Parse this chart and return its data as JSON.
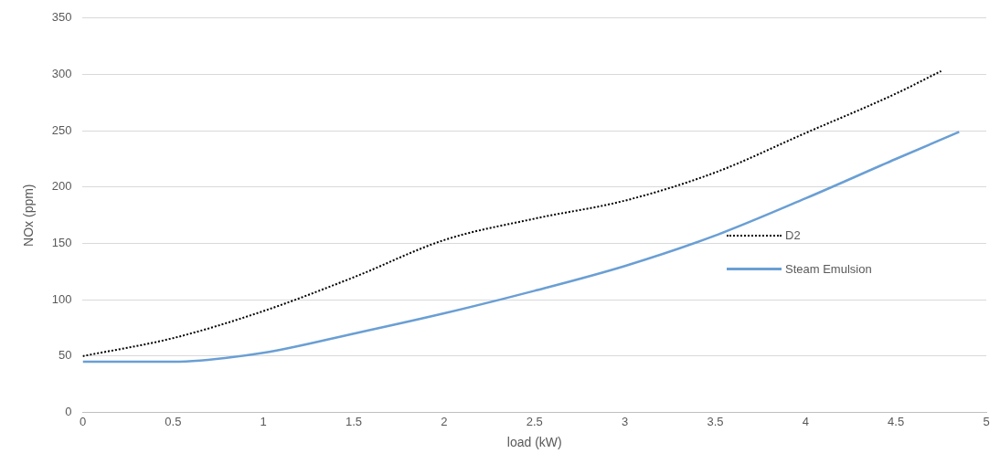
{
  "chart_data": {
    "type": "line",
    "xlabel": "load (kW)",
    "ylabel": "NOx (ppm)",
    "xlim": [
      0,
      5
    ],
    "xticks": [
      0,
      0.5,
      1,
      1.5,
      2,
      2.5,
      3,
      3.5,
      4,
      4.5,
      5
    ],
    "ylim": [
      0,
      350
    ],
    "yticks": [
      0,
      50,
      100,
      150,
      200,
      250,
      300,
      350
    ],
    "grid": "y",
    "legend": "right",
    "marker": "none",
    "series": [
      {
        "name": "D2",
        "color": "#000000",
        "line_style": "dotted",
        "x": [
          0,
          0.5,
          1,
          1.5,
          2,
          2.5,
          3,
          3.5,
          4,
          4.5,
          4.75
        ],
        "values": [
          50,
          66,
          90,
          120,
          153,
          172,
          188,
          213,
          248,
          283,
          303
        ]
      },
      {
        "name": "Steam Emulsion",
        "color": "#6a9fd4",
        "line_style": "solid",
        "x": [
          0,
          0.5,
          1,
          1.5,
          2,
          2.5,
          3,
          3.5,
          4,
          4.5,
          4.85
        ],
        "values": [
          45,
          45,
          53,
          70,
          88,
          108,
          130,
          157,
          190,
          225,
          249
        ]
      }
    ]
  }
}
